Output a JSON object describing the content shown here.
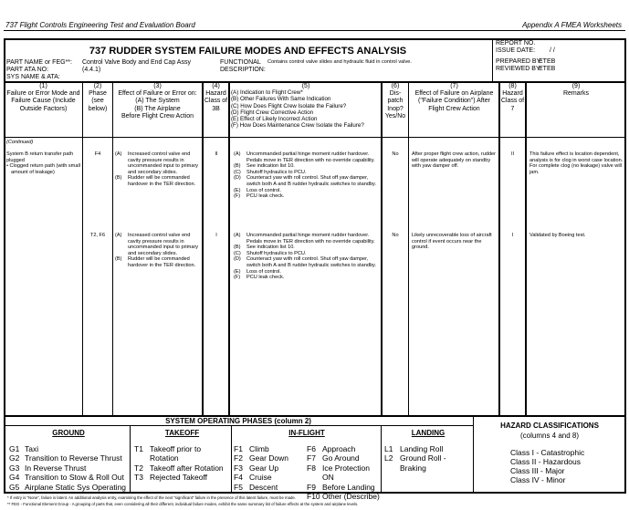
{
  "page_header": {
    "left": "737 Flight Controls Engineering Test and Evaluation Board",
    "right": "Appendix A   FMEA Worksheets"
  },
  "form": {
    "title": "737 RUDDER SYSTEM FAILURE MODES AND EFFECTS ANALYSIS",
    "part_name_label": "PART NAME or FEG**:",
    "part_name": "Control Valve Body and End Cap Assy",
    "part_ata_label": "PART ATA NO:",
    "part_ata": "(4.4.1)",
    "sys_label": "SYS NAME & ATA:",
    "functional_label": "FUNCTIONAL",
    "description_label": "DESCRIPTION:",
    "functional_description": "Contains control valve slides and hydraulic fluid in control valve.",
    "report_no_label": "REPORT NO.",
    "issue_date_label": "ISSUE DATE:",
    "issue_date": "/   /",
    "prepared_label": "PREPARED BY:",
    "prepared": "ETEB",
    "reviewed_label": "REVIEWED BY:",
    "reviewed": "ETEB"
  },
  "columns": [
    {
      "num": "(1)",
      "label": "Failure or Error Mode and Failure Cause (Include Outside Factors)"
    },
    {
      "num": "(2)",
      "label": "Phase (see below)"
    },
    {
      "num": "(3)",
      "label": "Effect of Failure or Error on:",
      "sub": [
        "(A)  The System",
        "(B)  The Airplane",
        "Before Flight Crew Action"
      ]
    },
    {
      "num": "(4)",
      "label": "Hazard Class of 3B"
    },
    {
      "num": "(5)",
      "items": [
        "(A)  Indication to Flight Crew*",
        "(B)  Other Failures With Same Indication",
        "(C)  How Does Flight Crew Isolate the Failure?",
        "(D)  Flight Crew Corrective Action",
        "(E)  Effect of Likely Incorrect Action",
        "(F)  How Does Maintenance Crew Isolate the Failure?"
      ]
    },
    {
      "num": "(6)",
      "label": "Dis-patch Inop? Yes/No"
    },
    {
      "num": "(7)",
      "label": "Effect of Failure on Airplane (\"Failure Condition\") After Flight Crew Action"
    },
    {
      "num": "(8)",
      "label": "Hazard Class of 7"
    },
    {
      "num": "(9)",
      "label": "Remarks"
    }
  ],
  "continued": "(Continued)",
  "failure_mode": {
    "title": "System B return transfer path plugged",
    "bullet": "Clogged return path (with small amount of leakage)"
  },
  "rows": [
    {
      "phase": "F4",
      "effect3": [
        {
          "k": "(A)",
          "v": "Increased control valve end cavity pressure results in uncommanded input to primary and secondary slides."
        },
        {
          "k": "(B)",
          "v": "Rudder will be commanded hardover in the TER direction."
        }
      ],
      "hazard3b": "II",
      "col5": [
        {
          "k": "(A)",
          "v": "Uncommanded partial hinge moment rudder hardover. Pedals move in TER direction with no override capability."
        },
        {
          "k": "(B)",
          "v": "See indication list 10."
        },
        {
          "k": "(C)",
          "v": "Shutoff hydraulics to PCU."
        },
        {
          "k": "(D)",
          "v": "Counteract yaw with roll control.  Shut off yaw damper, switch both A and B rudder hydraulic switches to standby."
        },
        {
          "k": "(E)",
          "v": "Loss of control."
        },
        {
          "k": "(F)",
          "v": "PCU leak check."
        }
      ],
      "dispatch": "No",
      "effect7": "After proper flight crew action, rudder will operate adequately on standby with yaw damper off.",
      "hazard7": "II",
      "remarks": "This failure effect is location dependent, analysis is for clog in worst case location. For complete clog (no leakage) valve will jam."
    },
    {
      "phase": "T2, F6",
      "effect3": [
        {
          "k": "(A)",
          "v": "Increased control valve end cavity pressure results in uncommanded input to primary and secondary slides."
        },
        {
          "k": "(B)",
          "v": "Rudder will be commanded hardover in the TER direction."
        }
      ],
      "hazard3b": "I",
      "col5": [
        {
          "k": "(A)",
          "v": "Uncommanded partial hinge moment rudder hardover. Pedals move in TER direction with no override capability."
        },
        {
          "k": "(B)",
          "v": "See indication list 10."
        },
        {
          "k": "(C)",
          "v": "Shutoff hydraulics to PCU."
        },
        {
          "k": "(D)",
          "v": "Counteract yaw with roll control.  Shut off yaw damper, switch both A and B rudder hydraulic switches to standby."
        },
        {
          "k": "(E)",
          "v": "Loss of control."
        },
        {
          "k": "(F)",
          "v": "PCU leak check."
        }
      ],
      "dispatch": "No",
      "effect7": "Likely unrecoverable loss of aircraft control if event occurs near the ground.",
      "hazard7": "I",
      "remarks": "Validated by Boeing test."
    }
  ],
  "phases": {
    "title": "SYSTEM OPERATING PHASES (column 2)",
    "ground": {
      "title": "GROUND",
      "items": [
        [
          "G1",
          "Taxi"
        ],
        [
          "G2",
          "Transition to Reverse Thrust"
        ],
        [
          "G3",
          "In Reverse Thrust"
        ],
        [
          "G4",
          "Transition to Stow & Roll Out"
        ],
        [
          "G5",
          "Airplane Static Sys Operating"
        ]
      ]
    },
    "takeoff": {
      "title": "TAKEOFF",
      "items": [
        [
          "T1",
          "Takeoff prior to Rotation"
        ],
        [
          "T2",
          "Takeoff after Rotation"
        ],
        [
          "T3",
          "  Rejected Takeoff"
        ]
      ]
    },
    "inflight": {
      "title": "IN-FLIGHT",
      "items": [
        [
          "F1",
          "Climb"
        ],
        [
          "F2",
          "Gear Down"
        ],
        [
          "F3",
          "Gear Up"
        ],
        [
          "F4",
          "Cruise"
        ],
        [
          "F5",
          "Descent"
        ]
      ],
      "items2": [
        [
          "F6",
          "Approach"
        ],
        [
          "F7",
          "Go Around"
        ],
        [
          "F8",
          "Ice Protection ON"
        ],
        [
          "F9",
          "Before Landing"
        ],
        [
          "F10",
          "Other (Describe)"
        ]
      ]
    },
    "landing": {
      "title": "LANDING",
      "items": [
        [
          "L1",
          "Landing Roll"
        ],
        [
          "L2",
          "Ground Roll - Braking"
        ]
      ]
    }
  },
  "hazard": {
    "title": "HAZARD CLASSIFICATIONS",
    "subtitle": "(columns 4 and 8)",
    "items": [
      "Class I   - Catastrophic",
      "Class II  - Hazardous",
      "Class III - Major",
      "Class IV - Minor"
    ]
  },
  "footnotes": [
    "*  If entry is \"None\", failure is latent.  An additional analysis entry, examining the effect of the next \"significant\" failure in the presence of this latent failure, must be made.",
    "** FEG - Functional Element Group - A grouping of parts that, even considering all their different, individual failure modes, exhibit the same summary list of failure effects at the system and airplane levels."
  ]
}
